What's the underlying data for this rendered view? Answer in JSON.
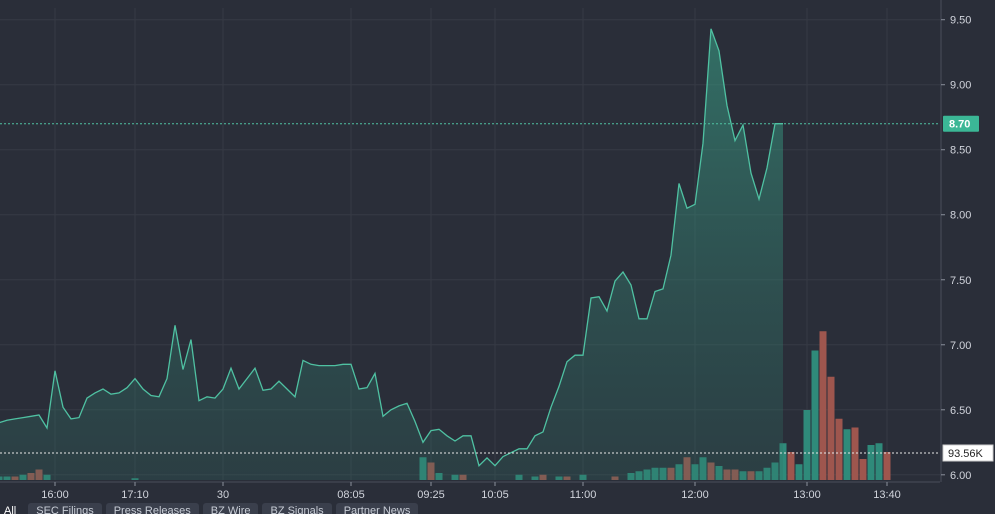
{
  "chart_data": {
    "type": "area",
    "y_ticks": [
      9.5,
      9.0,
      8.5,
      8.0,
      7.5,
      7.0,
      6.5,
      6.0
    ],
    "y_tick_labels": [
      "9.50",
      "9.00",
      "8.50",
      "8.00",
      "7.50",
      "7.00",
      "6.50",
      "6.00"
    ],
    "ylim": [
      5.96,
      9.59
    ],
    "x_tick_labels": [
      "16:00",
      "17:10",
      "30",
      "08:05",
      "09:25",
      "10:05",
      "11:00",
      "12:00",
      "13:00",
      "13:40"
    ],
    "x_tick_index": [
      7,
      17,
      28,
      44,
      54,
      62,
      73,
      87,
      101,
      111
    ],
    "x_count": 116,
    "price_series": [
      6.4,
      6.42,
      6.43,
      6.44,
      6.45,
      6.46,
      6.36,
      6.8,
      6.52,
      6.43,
      6.44,
      6.59,
      6.63,
      6.66,
      6.62,
      6.63,
      6.67,
      6.74,
      6.66,
      6.61,
      6.6,
      6.74,
      7.15,
      6.81,
      7.04,
      6.57,
      6.6,
      6.59,
      6.66,
      6.82,
      6.66,
      6.74,
      6.82,
      6.65,
      6.66,
      6.72,
      6.66,
      6.6,
      6.88,
      6.85,
      6.84,
      6.84,
      6.84,
      6.85,
      6.85,
      6.66,
      6.67,
      6.78,
      6.45,
      6.5,
      6.53,
      6.55,
      6.41,
      6.25,
      6.34,
      6.35,
      6.3,
      6.26,
      6.3,
      6.3,
      6.07,
      6.13,
      6.07,
      6.14,
      6.17,
      6.2,
      6.2,
      6.3,
      6.33,
      6.52,
      6.68,
      6.87,
      6.92,
      6.92,
      7.36,
      7.37,
      7.26,
      7.49,
      7.56,
      7.46,
      7.2,
      7.2,
      7.41,
      7.43,
      7.69,
      8.24,
      8.05,
      8.08,
      8.55,
      9.43,
      9.26,
      8.84,
      8.57,
      8.69,
      8.32,
      8.12,
      8.36,
      8.7,
      8.7
    ],
    "last_price": 8.7,
    "last_price_label": "8.70",
    "volume_label": "93.56K",
    "volume_bars": [
      {
        "i": 0,
        "v": 0.02,
        "up": true
      },
      {
        "i": 1,
        "v": 0.02,
        "up": true
      },
      {
        "i": 2,
        "v": 0.02,
        "up": false
      },
      {
        "i": 3,
        "v": 0.03,
        "up": true
      },
      {
        "i": 4,
        "v": 0.04,
        "up": false
      },
      {
        "i": 5,
        "v": 0.06,
        "up": false
      },
      {
        "i": 6,
        "v": 0.03,
        "up": true
      },
      {
        "i": 17,
        "v": 0.01,
        "up": true
      },
      {
        "i": 53,
        "v": 0.13,
        "up": true
      },
      {
        "i": 54,
        "v": 0.1,
        "up": false
      },
      {
        "i": 55,
        "v": 0.04,
        "up": true
      },
      {
        "i": 57,
        "v": 0.03,
        "up": true
      },
      {
        "i": 58,
        "v": 0.03,
        "up": false
      },
      {
        "i": 65,
        "v": 0.03,
        "up": true
      },
      {
        "i": 67,
        "v": 0.02,
        "up": true
      },
      {
        "i": 68,
        "v": 0.03,
        "up": false
      },
      {
        "i": 70,
        "v": 0.02,
        "up": true
      },
      {
        "i": 71,
        "v": 0.02,
        "up": false
      },
      {
        "i": 73,
        "v": 0.03,
        "up": true
      },
      {
        "i": 77,
        "v": 0.02,
        "up": false
      },
      {
        "i": 79,
        "v": 0.04,
        "up": true
      },
      {
        "i": 80,
        "v": 0.05,
        "up": true
      },
      {
        "i": 81,
        "v": 0.06,
        "up": true
      },
      {
        "i": 82,
        "v": 0.07,
        "up": true
      },
      {
        "i": 83,
        "v": 0.07,
        "up": true
      },
      {
        "i": 84,
        "v": 0.07,
        "up": false
      },
      {
        "i": 85,
        "v": 0.09,
        "up": true
      },
      {
        "i": 86,
        "v": 0.13,
        "up": false
      },
      {
        "i": 87,
        "v": 0.09,
        "up": true
      },
      {
        "i": 88,
        "v": 0.13,
        "up": true
      },
      {
        "i": 89,
        "v": 0.1,
        "up": false
      },
      {
        "i": 90,
        "v": 0.08,
        "up": true
      },
      {
        "i": 91,
        "v": 0.06,
        "up": false
      },
      {
        "i": 92,
        "v": 0.06,
        "up": false
      },
      {
        "i": 93,
        "v": 0.05,
        "up": true
      },
      {
        "i": 94,
        "v": 0.05,
        "up": false
      },
      {
        "i": 95,
        "v": 0.05,
        "up": true
      },
      {
        "i": 96,
        "v": 0.07,
        "up": true
      },
      {
        "i": 97,
        "v": 0.1,
        "up": true
      },
      {
        "i": 98,
        "v": 0.21,
        "up": true
      },
      {
        "i": 99,
        "v": 0.16,
        "up": false
      },
      {
        "i": 100,
        "v": 0.09,
        "up": true
      },
      {
        "i": 101,
        "v": 0.4,
        "up": true
      },
      {
        "i": 102,
        "v": 0.74,
        "up": true
      },
      {
        "i": 103,
        "v": 0.85,
        "up": false
      },
      {
        "i": 104,
        "v": 0.59,
        "up": false
      },
      {
        "i": 105,
        "v": 0.35,
        "up": false
      },
      {
        "i": 106,
        "v": 0.29,
        "up": true
      },
      {
        "i": 107,
        "v": 0.3,
        "up": false
      },
      {
        "i": 108,
        "v": 0.12,
        "up": false
      },
      {
        "i": 109,
        "v": 0.2,
        "up": true
      },
      {
        "i": 110,
        "v": 0.21,
        "up": true
      },
      {
        "i": 111,
        "v": 0.16,
        "up": false
      }
    ],
    "colors": {
      "background": "#2a2e39",
      "grid": "#363a45",
      "line": "#4fc1a2",
      "up_volume": "#2f8f7d",
      "down_volume": "#a4584f",
      "price_badge": "#3bb796",
      "axis_text": "#d1d4dc"
    }
  },
  "tabs": [
    "All",
    "SEC Filings",
    "Press Releases",
    "BZ Wire",
    "BZ Signals",
    "Partner News"
  ]
}
